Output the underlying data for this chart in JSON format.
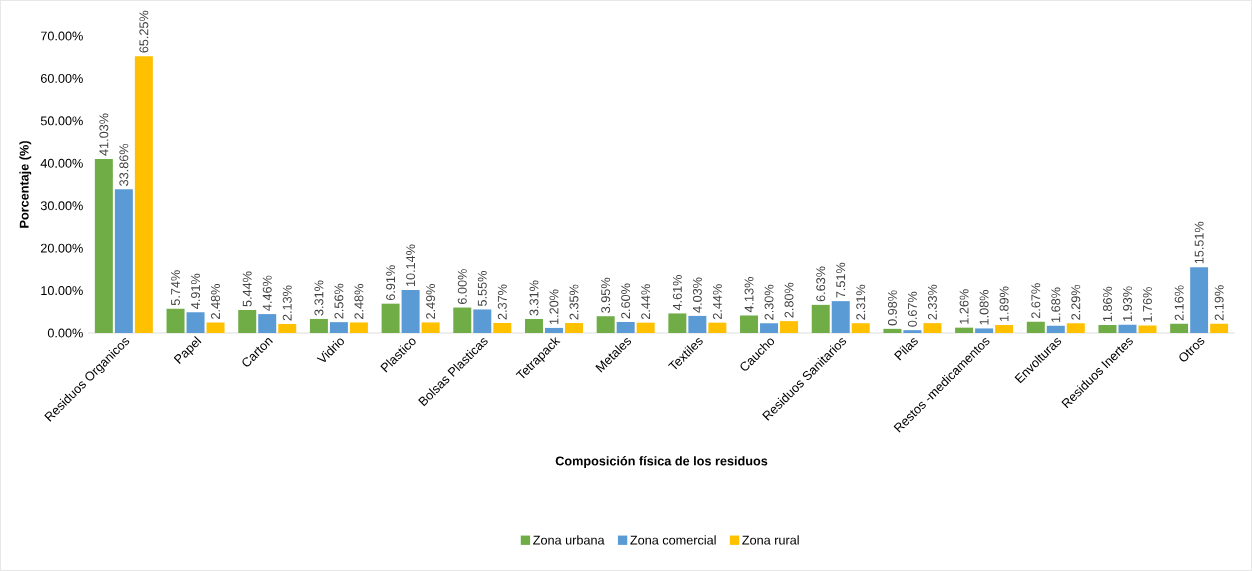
{
  "chart_data": {
    "type": "bar",
    "xlabel": "Composición física de los residuos",
    "ylabel": "Porcentaje (%)",
    "categories": [
      "Residuos Organicos",
      "Papel",
      "Carton",
      "Vidrio",
      "Plastico",
      "Bolsas Plasticas",
      "Tetrapack",
      "Metales",
      "Textiles",
      "Caucho",
      "Residuos Sanitarios",
      "Pilas",
      "Restos -medicamentos",
      "Envolturas",
      "Residuos Inertes",
      "Otros"
    ],
    "series": [
      {
        "name": "Zona urbana",
        "color": "#70ad47",
        "values": [
          41.03,
          5.74,
          5.44,
          3.31,
          6.91,
          6.0,
          3.31,
          3.95,
          4.61,
          4.13,
          6.63,
          0.98,
          1.26,
          2.67,
          1.86,
          2.16
        ],
        "value_labels": [
          "41.03%",
          "5.74%",
          "5.44%",
          "3.31%",
          "6.91%",
          "6.00%",
          "3.31%",
          "3.95%",
          "4.61%",
          "4.13%",
          "6.63%",
          "0.98%",
          "1.26%",
          "2.67%",
          "1.86%",
          "2.16%"
        ]
      },
      {
        "name": "Zona comercial",
        "color": "#5b9bd5",
        "values": [
          33.86,
          4.91,
          4.46,
          2.56,
          10.14,
          5.55,
          1.2,
          2.6,
          4.03,
          2.3,
          7.51,
          0.67,
          1.08,
          1.68,
          1.93,
          15.51
        ],
        "value_labels": [
          "33.86%",
          "4.91%",
          "4.46%",
          "2.56%",
          "10.14%",
          "5.55%",
          "1.20%",
          "2.60%",
          "4.03%",
          "2.30%",
          "7.51%",
          "0.67%",
          "1.08%",
          "1.68%",
          "1.93%",
          "15.51%"
        ]
      },
      {
        "name": "Zona rural",
        "color": "#ffc000",
        "values": [
          65.25,
          2.48,
          2.13,
          2.48,
          2.49,
          2.37,
          2.35,
          2.44,
          2.44,
          2.8,
          2.31,
          2.33,
          1.89,
          2.29,
          1.76,
          2.19
        ],
        "value_labels": [
          "65.25%",
          "2.48%",
          "2.13%",
          "2.48%",
          "2.49%",
          "2.37%",
          "2.35%",
          "2.44%",
          "2.44%",
          "2.80%",
          "2.31%",
          "2.33%",
          "1.89%",
          "2.29%",
          "1.76%",
          "2.19%"
        ]
      }
    ],
    "ylim": [
      0,
      70
    ],
    "yticks": [
      {
        "value": 0,
        "label": "0.00%"
      },
      {
        "value": 10,
        "label": "10.00%"
      },
      {
        "value": 20,
        "label": "20.00%"
      },
      {
        "value": 30,
        "label": "30.00%"
      },
      {
        "value": 40,
        "label": "40.00%"
      },
      {
        "value": 50,
        "label": "50.00%"
      },
      {
        "value": 60,
        "label": "60.00%"
      },
      {
        "value": 70,
        "label": "70.00%"
      }
    ],
    "legend": "bottom"
  }
}
